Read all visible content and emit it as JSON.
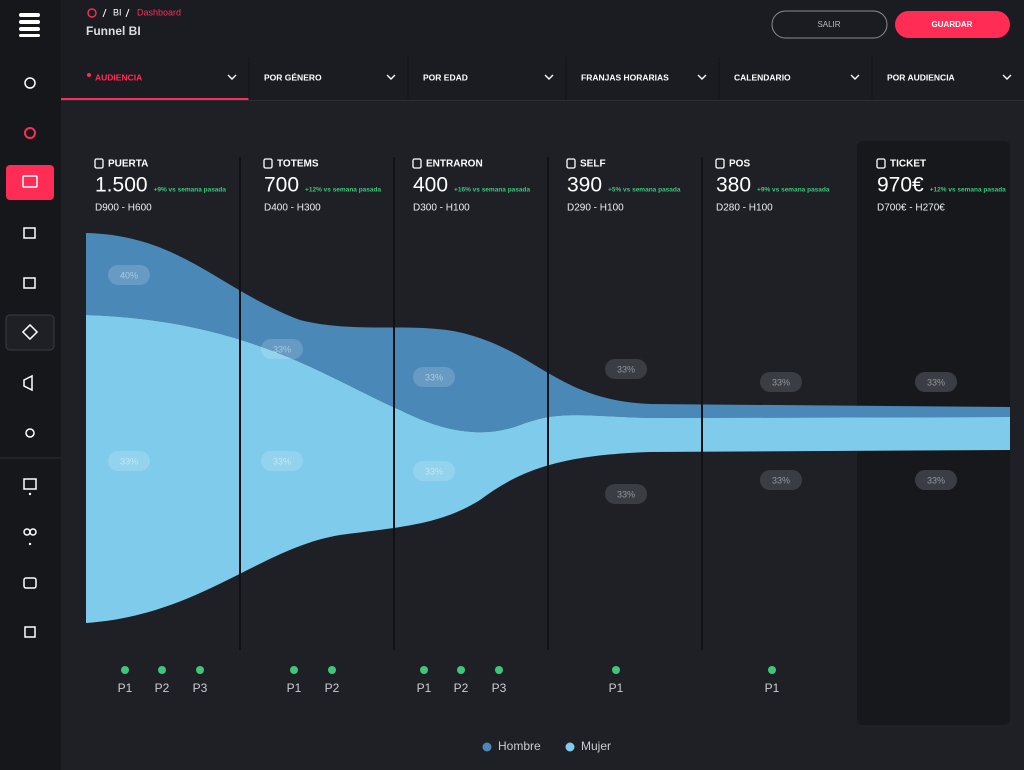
{
  "header": {
    "breadcrumb": [
      "BI",
      "Dashboard"
    ],
    "title": "Funnel BI",
    "buttons": [
      "SALIR",
      "GUARDAR"
    ]
  },
  "tabs": [
    "AUDIENCIA",
    "POR GÉNERO",
    "POR EDAD",
    "FRANJAS HORARIAS",
    "CALENDARIO",
    "POR AUDIENCIA"
  ],
  "stages": [
    {
      "name": "PUERTA",
      "value": "1.500",
      "change": "+9% vs semana pasada",
      "detail": "D900 - H600",
      "shares": [
        "40%",
        "33%"
      ],
      "points": [
        "P1",
        "P2",
        "P3"
      ]
    },
    {
      "name": "TOTEMS",
      "value": "700",
      "change": "+12% vs semana pasada",
      "detail": "D400 - H300",
      "shares": [
        "33%",
        "33%"
      ],
      "points": [
        "P1",
        "P2"
      ]
    },
    {
      "name": "ENTRARON",
      "value": "400",
      "change": "+16% vs semana pasada",
      "detail": "D300 - H100",
      "shares": [
        "33%",
        "33%"
      ],
      "points": [
        "P1",
        "P2",
        "P3"
      ]
    },
    {
      "name": "SELF",
      "value": "390",
      "change": "+5% vs semana pasada",
      "detail": "D290 - H100",
      "shares": [
        "33%",
        "33%"
      ],
      "points": [
        "P1"
      ]
    },
    {
      "name": "POS",
      "value": "380",
      "change": "+9% vs semana pasada",
      "detail": "D280 - H100",
      "shares": [
        "33%",
        "33%"
      ],
      "points": [
        "P1"
      ]
    },
    {
      "name": "TICKET",
      "value": "970€",
      "change": "+12% vs semana pasada",
      "detail": "D700€ - H270€",
      "shares": [
        "33%",
        "33%"
      ],
      "points": []
    }
  ],
  "legend": [
    {
      "name": "Hombre",
      "color": "#4a88b8"
    },
    {
      "name": "Mujer",
      "color": "#7fcbeb"
    }
  ]
}
